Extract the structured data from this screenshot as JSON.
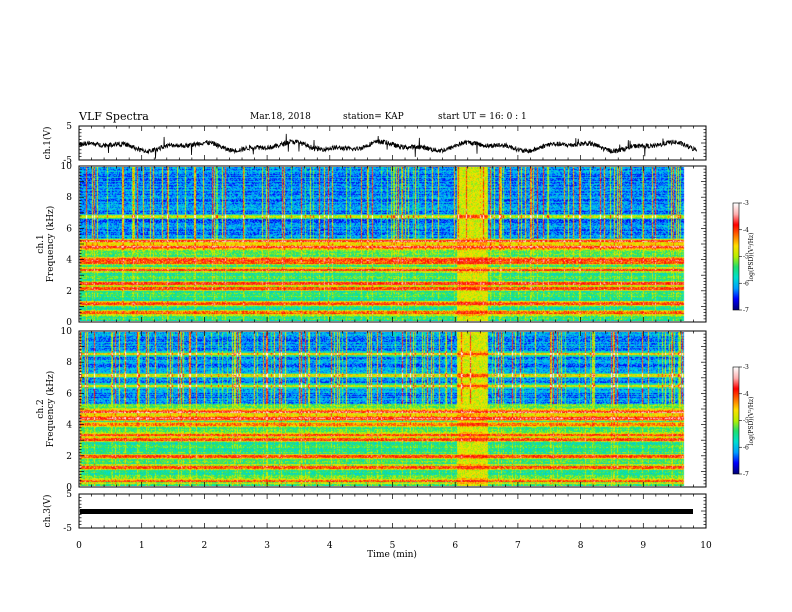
{
  "header": {
    "title": "VLF Spectra",
    "date": "Mar.18, 2018",
    "station": "station= KAP",
    "start": "start  UT =   16: 0  : 1"
  },
  "chart_data": [
    {
      "type": "line",
      "panel": "ch1-waveform",
      "ylabel": "ch.1(V)",
      "ylim": [
        -5,
        5
      ],
      "yticks": [
        "-5",
        "5"
      ],
      "xlim": [
        0,
        10
      ],
      "signal": "noisy waveform oscillating around about -1 V, spanning roughly -3 to +2 V, ending at about 9.85 min"
    },
    {
      "type": "heatmap",
      "panel": "ch1-spectrogram",
      "ylabel": "ch.1 Frequency (kHz)",
      "ylim": [
        0,
        10
      ],
      "yticks": [
        "0",
        "2",
        "4",
        "6",
        "8",
        "10"
      ],
      "xlim": [
        0,
        10
      ],
      "colorbar": {
        "label": "log(PSD)(V²/Hz)",
        "range": [
          -7,
          -3
        ],
        "ticks": [
          "-3",
          "-4",
          "-5",
          "-6",
          "-7"
        ]
      },
      "features": {
        "high_intensity_bands_khz": [
          0.5,
          1.1,
          2.1,
          2.4,
          3.3,
          3.8,
          4.0,
          4.8,
          5.2,
          6.8
        ],
        "broadband_event_min": [
          6.15,
          6.65
        ],
        "data_end_min": 9.85
      }
    },
    {
      "type": "heatmap",
      "panel": "ch2-spectrogram",
      "ylabel": "ch.2 Frequency (kHz)",
      "ylim": [
        0,
        10
      ],
      "yticks": [
        "0",
        "2",
        "4",
        "6",
        "8",
        "10"
      ],
      "xlim": [
        0,
        10
      ],
      "colorbar": {
        "label": "log(PSD)(V²/Hz)",
        "range": [
          -7,
          -3
        ],
        "ticks": [
          "-3",
          "-4",
          "-5",
          "-6",
          "-7"
        ]
      },
      "features": {
        "high_intensity_bands_khz": [
          0.3,
          1.2,
          1.9,
          3.0,
          3.3,
          4.0,
          4.4,
          4.8,
          6.5,
          7.2,
          8.6
        ],
        "broadband_event_min": [
          6.15,
          6.65
        ],
        "data_end_min": 9.85
      }
    },
    {
      "type": "line",
      "panel": "ch3-waveform",
      "ylabel": "ch.3(V)",
      "ylim": [
        -5,
        5
      ],
      "yticks": [
        "-5",
        "5"
      ],
      "xlim": [
        0,
        10
      ],
      "signal": "constant at about -1 V"
    }
  ],
  "xaxis": {
    "label": "Time (min)",
    "ticks": [
      "0",
      "1",
      "2",
      "3",
      "4",
      "5",
      "6",
      "7",
      "8",
      "9",
      "10"
    ]
  },
  "colors": {
    "cmap": [
      "#00007a",
      "#0000ff",
      "#00a0ff",
      "#00e0d0",
      "#20e070",
      "#b8f000",
      "#ffe000",
      "#ff7000",
      "#ff0000",
      "#ffb0b0",
      "#ffffff"
    ]
  }
}
